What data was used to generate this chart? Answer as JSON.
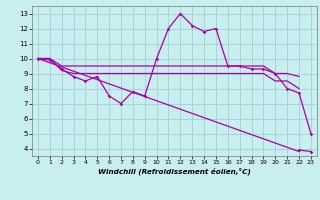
{
  "xlabel": "Windchill (Refroidissement éolien,°C)",
  "xlim": [
    -0.5,
    23.5
  ],
  "ylim": [
    3.5,
    13.5
  ],
  "yticks": [
    4,
    5,
    6,
    7,
    8,
    9,
    10,
    11,
    12,
    13
  ],
  "xticks": [
    0,
    1,
    2,
    3,
    4,
    5,
    6,
    7,
    8,
    9,
    10,
    11,
    12,
    13,
    14,
    15,
    16,
    17,
    18,
    19,
    20,
    21,
    22,
    23
  ],
  "bg_color": "#c8eef0",
  "line_color": "#aa00aa",
  "grid_color": "#99cccc",
  "line1_x": [
    0,
    1,
    2,
    3,
    4,
    5,
    6,
    7,
    8,
    9,
    10,
    11,
    12,
    13,
    14,
    15,
    16,
    17,
    18,
    19,
    20,
    21,
    22
  ],
  "line1_y": [
    10,
    10,
    9.5,
    9.5,
    9.5,
    9.5,
    9.5,
    9.5,
    9.5,
    9.5,
    9.5,
    9.5,
    9.5,
    9.5,
    9.5,
    9.5,
    9.5,
    9.5,
    9.5,
    9.5,
    9.0,
    9.0,
    8.8
  ],
  "line2_x": [
    0,
    1,
    2,
    3,
    4,
    5,
    6,
    7,
    8,
    9,
    10,
    11,
    12,
    13,
    14,
    15,
    16,
    17,
    18,
    19,
    20,
    21,
    22
  ],
  "line2_y": [
    10,
    10,
    9.2,
    9.0,
    9.0,
    9.0,
    9.0,
    9.0,
    9.0,
    9.0,
    9.0,
    9.0,
    9.0,
    9.0,
    9.0,
    9.0,
    9.0,
    9.0,
    9.0,
    9.0,
    8.5,
    8.5,
    8.0
  ],
  "line3_x": [
    0,
    22
  ],
  "line3_y": [
    10.0,
    3.8
  ],
  "line4_x": [
    0,
    1,
    2,
    3,
    4,
    5,
    6,
    7,
    8,
    9,
    10,
    11,
    12,
    13,
    14,
    15,
    16,
    17,
    18,
    19,
    20,
    21,
    22,
    23
  ],
  "line4_y": [
    10,
    9.9,
    9.3,
    8.8,
    8.5,
    8.8,
    7.5,
    7.0,
    7.8,
    7.5,
    10.0,
    12.0,
    13.0,
    12.2,
    11.8,
    12.0,
    9.5,
    9.5,
    9.3,
    9.3,
    9.0,
    8.0,
    7.7,
    5.0
  ],
  "line5_x": [
    22,
    23
  ],
  "line5_y": [
    3.9,
    3.8
  ]
}
